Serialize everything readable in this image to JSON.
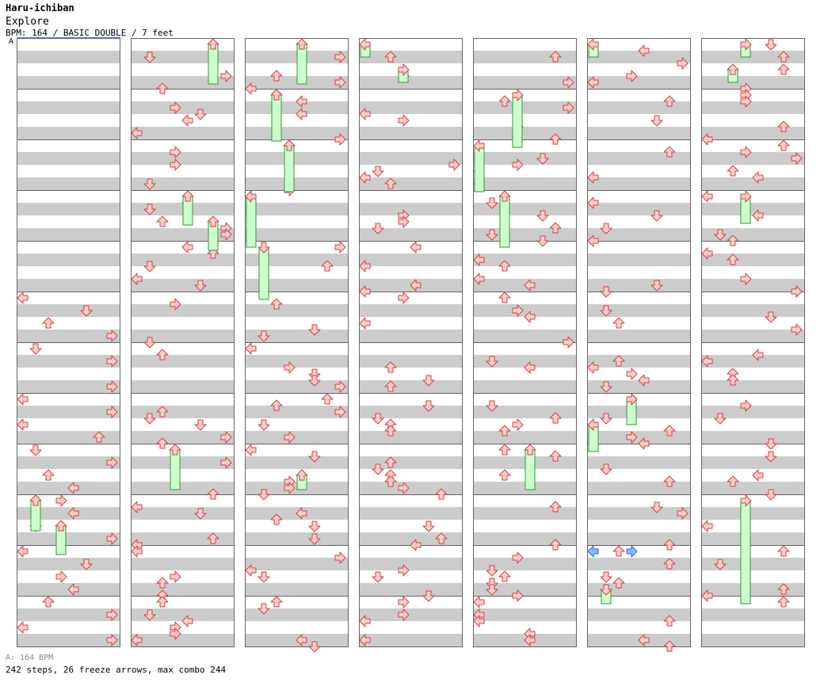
{
  "header": {
    "title": "Haru-ichiban",
    "artist": "Explore",
    "info": "BPM: 164 / BASIC DOUBLE / 7 feet",
    "marker": "A"
  },
  "footer": {
    "bpm_note": "A: 164 BPM",
    "stats": "242 steps, 26 freeze arrows, max combo 244"
  },
  "colors": {
    "stripe": "#cccccc",
    "border": "#666666",
    "arrow_fill": "#ffcccc",
    "arrow_stroke": "#cc4444",
    "freeze_fill": "#ccffcc",
    "freeze_stroke": "#339933",
    "shock_fill": "#88bbff",
    "shock_stroke": "#3366cc"
  },
  "chart_data": {
    "type": "step-chart",
    "columns": 7,
    "measures_per_column": 12,
    "lanes": 8,
    "notes": [
      [
        0,
        6,
        "L"
      ],
      [
        0,
        7,
        "D"
      ],
      [
        0,
        8,
        "U"
      ],
      [
        0,
        9,
        "R"
      ],
      [
        0,
        10,
        "D"
      ],
      [
        0,
        11,
        "R"
      ],
      [
        0,
        13,
        "R"
      ],
      [
        0,
        14,
        "L"
      ],
      [
        0,
        15,
        "R"
      ],
      [
        0,
        16,
        "L"
      ],
      [
        0,
        17,
        "U"
      ],
      [
        0,
        18,
        "D"
      ],
      [
        0,
        19,
        "R"
      ],
      [
        0,
        20,
        "U"
      ],
      [
        0,
        21,
        "L"
      ],
      [
        0,
        22,
        "R"
      ],
      [
        0,
        23,
        "L"
      ],
      [
        0,
        24,
        "D"
      ],
      [
        0,
        25,
        "R"
      ],
      [
        0,
        26,
        "L"
      ],
      [
        0,
        27,
        "D"
      ],
      [
        0,
        28,
        "R"
      ],
      [
        0,
        29,
        "L"
      ],
      [
        0,
        30,
        "U"
      ],
      [
        0,
        31,
        "R"
      ],
      [
        0,
        32,
        "L"
      ],
      [
        0,
        33,
        "R"
      ],
      [
        0,
        34,
        "L"
      ],
      [
        0,
        35,
        "U"
      ],
      [
        0,
        36,
        "L"
      ],
      [
        0,
        37,
        "D"
      ],
      [
        0,
        38,
        "R"
      ],
      [
        0,
        39,
        "L"
      ],
      [
        0,
        40,
        "D"
      ],
      [
        0,
        41,
        "R"
      ],
      [
        0,
        42,
        "L"
      ],
      [
        0,
        43,
        "R"
      ],
      [
        0,
        44,
        "L"
      ],
      [
        0,
        45,
        "U"
      ],
      [
        0,
        46,
        "R"
      ],
      [
        0,
        47,
        "L"
      ]
    ]
  }
}
